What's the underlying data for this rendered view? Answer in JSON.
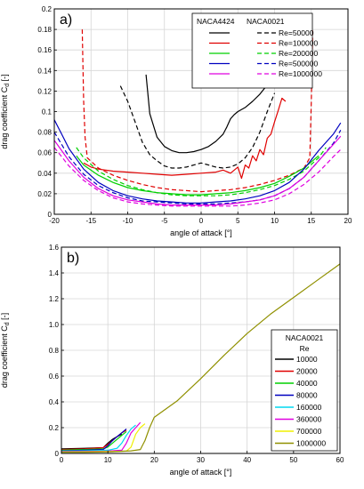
{
  "chart_data": [
    {
      "type": "line",
      "panel_label": "a)",
      "xlabel": "angle of attack [°]",
      "ylabel": "drag coefficient C",
      "ylabel_sub": "d",
      "ylabel_unit": " [-]",
      "xlim": [
        -20,
        20
      ],
      "ylim": [
        0,
        0.2
      ],
      "xticks": [
        -20,
        -15,
        -10,
        -5,
        0,
        5,
        10,
        15,
        20
      ],
      "yticks": [
        0,
        0.02,
        0.04,
        0.06,
        0.08,
        0.1,
        0.12,
        0.14,
        0.16,
        0.18,
        0.2
      ],
      "ytick_labels": [
        "0",
        "0.02",
        "0.04",
        "0.06",
        "0.08",
        "0.1",
        "0.12",
        "0.14",
        "0.16",
        "0.18",
        "0.2"
      ],
      "grid": true,
      "legend": {
        "placement": "top-right",
        "col_headers": [
          "NACA4424",
          "NACA0021"
        ],
        "entries": [
          "Re=50000",
          "Re=100000",
          "Re=200000",
          "Re=500000",
          "Re=1000000"
        ],
        "colors": [
          "#000000",
          "#e00000",
          "#00d000",
          "#0000c0",
          "#e000e0"
        ]
      },
      "series": [
        {
          "name": "NACA4424 Re=50000",
          "color": "#000000",
          "dash": false,
          "x": [
            -7.5,
            -7,
            -6,
            -5,
            -4,
            -3,
            -2,
            -1,
            0,
            1,
            2,
            3,
            3.5,
            4,
            4.5,
            5,
            6,
            7,
            8,
            9,
            10
          ],
          "y": [
            0.136,
            0.098,
            0.075,
            0.066,
            0.062,
            0.06,
            0.06,
            0.061,
            0.063,
            0.066,
            0.071,
            0.078,
            0.085,
            0.093,
            0.097,
            0.1,
            0.104,
            0.11,
            0.117,
            0.126,
            0.136
          ]
        },
        {
          "name": "NACA0021 Re=50000",
          "color": "#000000",
          "dash": true,
          "x": [
            -11,
            -10,
            -9,
            -8,
            -7,
            -6,
            -5,
            -4,
            -3,
            -2,
            -1,
            0,
            1,
            2,
            3,
            4,
            5,
            6,
            7,
            8,
            9,
            10
          ],
          "y": [
            0.125,
            0.11,
            0.09,
            0.07,
            0.058,
            0.052,
            0.047,
            0.045,
            0.045,
            0.046,
            0.048,
            0.05,
            0.048,
            0.046,
            0.045,
            0.046,
            0.049,
            0.055,
            0.065,
            0.08,
            0.1,
            0.118
          ]
        },
        {
          "name": "NACA4424 Re=100000",
          "color": "#e00000",
          "dash": false,
          "x": [
            -16,
            -15,
            -14,
            -12,
            -10,
            -8,
            -6,
            -4,
            -2,
            0,
            2,
            3,
            4,
            5,
            5.5,
            6,
            6.5,
            7,
            7.5,
            8,
            8.5,
            9,
            9.5,
            10,
            10.5,
            11,
            11.5
          ],
          "y": [
            0.05,
            0.046,
            0.044,
            0.042,
            0.041,
            0.04,
            0.039,
            0.038,
            0.039,
            0.04,
            0.041,
            0.043,
            0.04,
            0.046,
            0.035,
            0.048,
            0.045,
            0.057,
            0.052,
            0.063,
            0.058,
            0.074,
            0.078,
            0.09,
            0.101,
            0.113,
            0.11
          ]
        },
        {
          "name": "NACA0021 Re=100000",
          "color": "#e00000",
          "dash": true,
          "x": [
            -16.2,
            -16,
            -15.8,
            -15.5,
            -14,
            -12,
            -10,
            -8,
            -6,
            -4,
            -2,
            0,
            2,
            4,
            6,
            8,
            10,
            12,
            14,
            14.8,
            15,
            15.2
          ],
          "y": [
            0.18,
            0.11,
            0.075,
            0.055,
            0.045,
            0.038,
            0.033,
            0.029,
            0.026,
            0.024,
            0.023,
            0.022,
            0.023,
            0.024,
            0.026,
            0.029,
            0.033,
            0.038,
            0.045,
            0.055,
            0.11,
            0.18
          ]
        },
        {
          "name": "NACA4424 Re=200000",
          "color": "#00d000",
          "dash": false,
          "x": [
            -17,
            -16,
            -14,
            -12,
            -10,
            -8,
            -6,
            -4,
            -2,
            0,
            2,
            4,
            6,
            8,
            10,
            12,
            14,
            16
          ],
          "y": [
            0.057,
            0.048,
            0.038,
            0.031,
            0.026,
            0.023,
            0.021,
            0.02,
            0.019,
            0.019,
            0.02,
            0.021,
            0.023,
            0.026,
            0.03,
            0.037,
            0.045,
            0.057
          ]
        },
        {
          "name": "NACA0021 Re=200000",
          "color": "#00d000",
          "dash": true,
          "x": [
            -17,
            -16,
            -14,
            -12,
            -10,
            -8,
            -6,
            -4,
            -2,
            0,
            2,
            4,
            6,
            8,
            10,
            12,
            14,
            16,
            17
          ],
          "y": [
            0.065,
            0.055,
            0.042,
            0.034,
            0.028,
            0.024,
            0.021,
            0.019,
            0.018,
            0.018,
            0.018,
            0.019,
            0.021,
            0.024,
            0.028,
            0.034,
            0.042,
            0.055,
            0.065
          ]
        },
        {
          "name": "NACA4424 Re=500000",
          "color": "#0000c0",
          "dash": false,
          "x": [
            -20,
            -19,
            -18,
            -16,
            -14,
            -12,
            -10,
            -8,
            -6,
            -4,
            -2,
            0,
            2,
            4,
            6,
            8,
            10,
            12,
            14,
            16,
            18,
            19
          ],
          "y": [
            0.092,
            0.078,
            0.064,
            0.044,
            0.031,
            0.023,
            0.018,
            0.015,
            0.013,
            0.012,
            0.011,
            0.011,
            0.012,
            0.013,
            0.015,
            0.018,
            0.023,
            0.031,
            0.044,
            0.062,
            0.078,
            0.089
          ]
        },
        {
          "name": "NACA0021 Re=500000",
          "color": "#0000c0",
          "dash": true,
          "x": [
            -20,
            -19,
            -18,
            -16,
            -14,
            -12,
            -10,
            -8,
            -6,
            -4,
            -2,
            0,
            2,
            4,
            6,
            8,
            10,
            12,
            14,
            16,
            18,
            19
          ],
          "y": [
            0.08,
            0.068,
            0.056,
            0.039,
            0.028,
            0.021,
            0.016,
            0.013,
            0.012,
            0.011,
            0.01,
            0.01,
            0.01,
            0.011,
            0.012,
            0.014,
            0.018,
            0.025,
            0.036,
            0.052,
            0.069,
            0.082
          ]
        },
        {
          "name": "NACA4424 Re=1000000",
          "color": "#e000e0",
          "dash": false,
          "x": [
            -20,
            -19,
            -18,
            -16,
            -14,
            -12,
            -10,
            -8,
            -6,
            -4,
            -2,
            0,
            2,
            4,
            6,
            8,
            10,
            12,
            14,
            16,
            18,
            19
          ],
          "y": [
            0.072,
            0.062,
            0.052,
            0.036,
            0.025,
            0.018,
            0.014,
            0.012,
            0.01,
            0.009,
            0.009,
            0.009,
            0.009,
            0.01,
            0.012,
            0.014,
            0.018,
            0.025,
            0.036,
            0.052,
            0.068,
            0.076
          ]
        },
        {
          "name": "NACA0021 Re=1000000",
          "color": "#e000e0",
          "dash": true,
          "x": [
            -20,
            -19,
            -18,
            -16,
            -14,
            -12,
            -10,
            -8,
            -6,
            -4,
            -2,
            0,
            2,
            4,
            6,
            8,
            10,
            12,
            14,
            16,
            18,
            19
          ],
          "y": [
            0.065,
            0.056,
            0.047,
            0.033,
            0.023,
            0.016,
            0.012,
            0.01,
            0.009,
            0.008,
            0.008,
            0.008,
            0.008,
            0.008,
            0.009,
            0.011,
            0.014,
            0.02,
            0.029,
            0.041,
            0.056,
            0.063
          ]
        }
      ]
    },
    {
      "type": "line",
      "panel_label": "b)",
      "xlabel": "angle of attack [°]",
      "ylabel": "drag coefficient C",
      "ylabel_sub": "d",
      "ylabel_unit": " [-]",
      "xlim": [
        0,
        60
      ],
      "ylim": [
        0,
        1.6
      ],
      "xticks": [
        0,
        10,
        20,
        30,
        40,
        50,
        60
      ],
      "yticks": [
        0,
        0.2,
        0.4,
        0.6,
        0.8,
        1.0,
        1.2,
        1.4,
        1.6
      ],
      "ytick_labels": [
        "0",
        "0.2",
        "0.4",
        "0.6",
        "0.8",
        "1.0",
        "1.2",
        "1.4",
        "1.6"
      ],
      "grid": true,
      "legend": {
        "placement": "center-right",
        "title_lines": [
          "NACA0021",
          "Re"
        ],
        "entries": [
          "10000",
          "20000",
          "40000",
          "80000",
          "160000",
          "360000",
          "700000",
          "1000000"
        ],
        "colors": [
          "#000000",
          "#e00000",
          "#00d000",
          "#0000c0",
          "#00d8f0",
          "#e000e0",
          "#f0f000",
          "#909000"
        ]
      },
      "series": [
        {
          "name": "10000",
          "color": "#000000",
          "x": [
            0,
            5,
            9,
            10,
            11,
            12,
            13
          ],
          "y": [
            0.035,
            0.04,
            0.045,
            0.08,
            0.11,
            0.13,
            0.15
          ]
        },
        {
          "name": "20000",
          "color": "#e00000",
          "x": [
            0,
            5,
            9,
            10,
            11,
            12,
            13,
            14
          ],
          "y": [
            0.03,
            0.035,
            0.045,
            0.07,
            0.1,
            0.13,
            0.16,
            0.18
          ]
        },
        {
          "name": "40000",
          "color": "#00d000",
          "x": [
            0,
            5,
            9,
            10,
            11,
            12,
            13,
            14
          ],
          "y": [
            0.025,
            0.03,
            0.035,
            0.05,
            0.08,
            0.11,
            0.14,
            0.17
          ]
        },
        {
          "name": "80000",
          "color": "#0000c0",
          "x": [
            0,
            5,
            9,
            10,
            11,
            12,
            13,
            14
          ],
          "y": [
            0.02,
            0.025,
            0.03,
            0.06,
            0.1,
            0.13,
            0.16,
            0.19
          ]
        },
        {
          "name": "160000",
          "color": "#00d8f0",
          "x": [
            0,
            5,
            10,
            12,
            13,
            14,
            15,
            16
          ],
          "y": [
            0.018,
            0.02,
            0.025,
            0.04,
            0.08,
            0.14,
            0.19,
            0.22
          ]
        },
        {
          "name": "360000",
          "color": "#e000e0",
          "x": [
            0,
            5,
            10,
            13,
            14,
            15,
            16,
            17
          ],
          "y": [
            0.015,
            0.016,
            0.018,
            0.025,
            0.08,
            0.16,
            0.2,
            0.24
          ]
        },
        {
          "name": "700000",
          "color": "#f0f000",
          "x": [
            0,
            5,
            10,
            14,
            15,
            16,
            17,
            18
          ],
          "y": [
            0.012,
            0.013,
            0.015,
            0.018,
            0.05,
            0.15,
            0.2,
            0.23
          ]
        },
        {
          "name": "1000000",
          "color": "#909000",
          "x": [
            0,
            5,
            10,
            15,
            17,
            18,
            19,
            20,
            25,
            30,
            35,
            40,
            45,
            50,
            55,
            60
          ],
          "y": [
            0.01,
            0.01,
            0.012,
            0.02,
            0.03,
            0.1,
            0.2,
            0.28,
            0.41,
            0.58,
            0.76,
            0.93,
            1.08,
            1.21,
            1.34,
            1.47
          ]
        }
      ]
    }
  ]
}
